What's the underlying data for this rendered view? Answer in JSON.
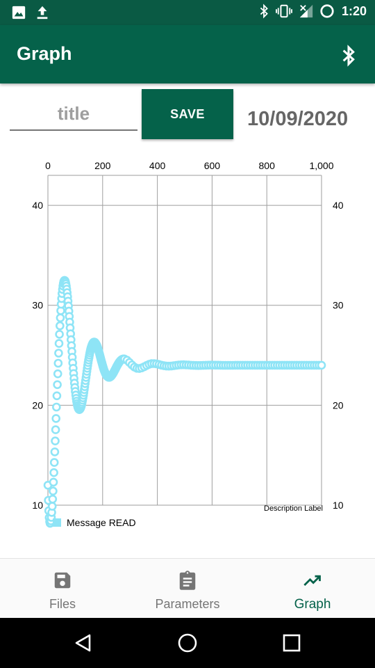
{
  "status_bar": {
    "time": "1:20",
    "left_icons": [
      "image-icon",
      "upload-icon"
    ],
    "right_icons": [
      "bluetooth-icon",
      "vibrate-icon",
      "signal-icon",
      "sync-icon"
    ]
  },
  "app_bar": {
    "title": "Graph",
    "action_icon": "bluetooth-icon"
  },
  "controls": {
    "title_placeholder": "title",
    "title_value": "",
    "save_label": "SAVE",
    "date": "10/09/2020"
  },
  "chart_data": {
    "type": "scatter",
    "title": "",
    "description_label": "Description Label",
    "x_ticks": [
      "0",
      "200",
      "400",
      "600",
      "800",
      "1,000"
    ],
    "y_ticks_left": [
      "40",
      "30",
      "20",
      "10"
    ],
    "y_ticks_right": [
      "40",
      "30",
      "20",
      "10"
    ],
    "xlim": [
      0,
      1000
    ],
    "ylim": [
      10,
      43
    ],
    "grid": true,
    "legend": "bottom-left",
    "marker": "hollow-circle",
    "series": [
      {
        "name": "Message READ",
        "color": "#8ee4f6",
        "signal": {
          "final": 24,
          "initial": 12,
          "amplitude": 18,
          "decay": 0.012,
          "omega": 0.058,
          "phase": -2.16,
          "x_start": 0,
          "x_end": 1000,
          "count": 260
        }
      }
    ]
  },
  "bottom_nav": {
    "items": [
      {
        "label": "Files",
        "icon": "save-icon",
        "active": false
      },
      {
        "label": "Parameters",
        "icon": "clipboard-icon",
        "active": false
      },
      {
        "label": "Graph",
        "icon": "trending-up-icon",
        "active": true
      }
    ],
    "active_color": "#05624a",
    "inactive_color": "#757575"
  },
  "system_nav": {
    "buttons": [
      "back-icon",
      "home-icon",
      "recents-icon"
    ]
  }
}
